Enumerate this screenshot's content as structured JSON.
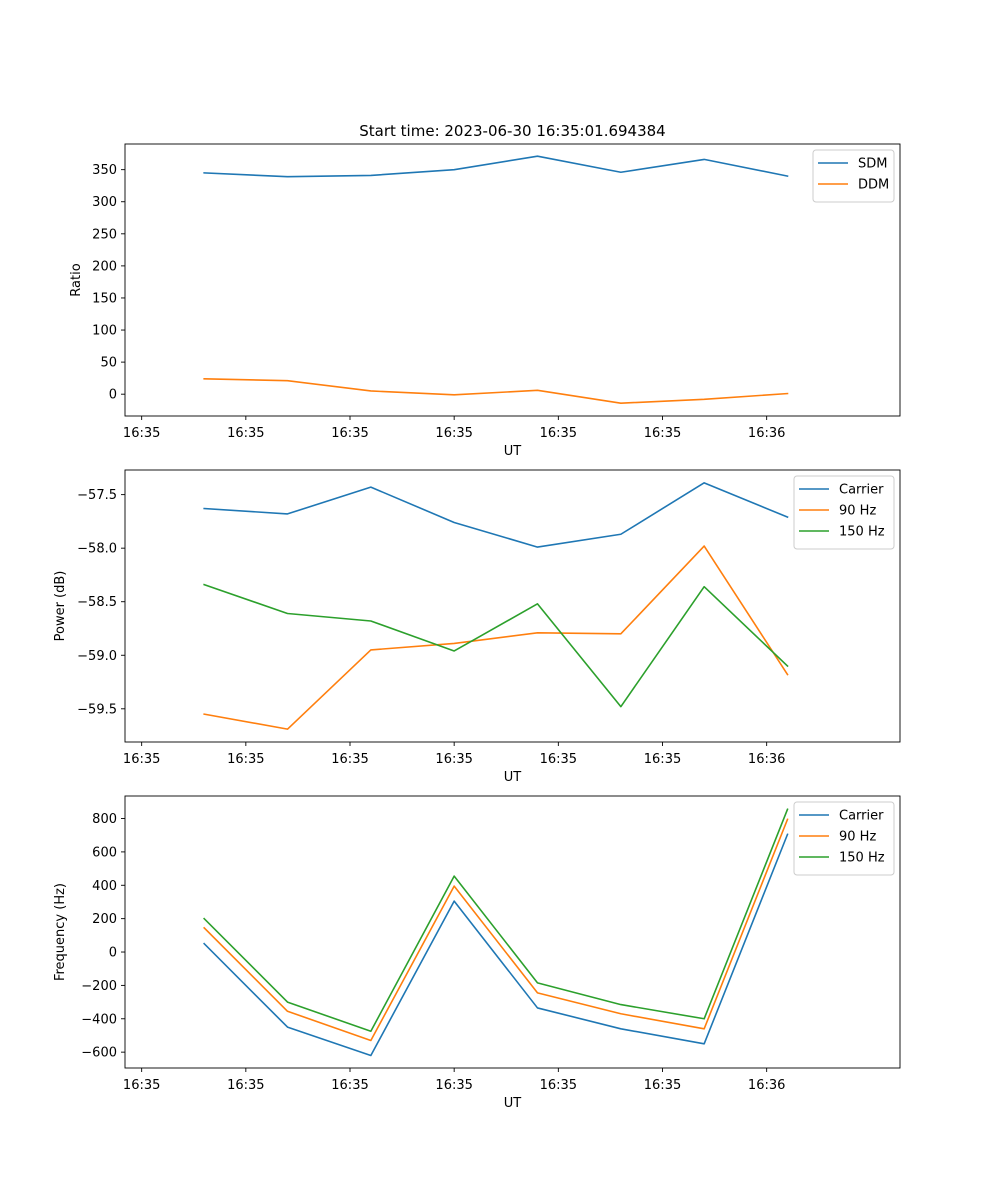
{
  "figure_title": "Start time: 2023-06-30 16:35:01.694384",
  "colors": {
    "blue": "#1f77b4",
    "orange": "#ff7f0e",
    "green": "#2ca02c",
    "axis": "#000000"
  },
  "chart_data": [
    {
      "type": "line",
      "title": "Start time: 2023-06-30 16:35:01.694384",
      "xlabel": "UT",
      "ylabel": "Ratio",
      "x_tick_labels": [
        "16:35",
        "16:35",
        "16:35",
        "16:35",
        "16:35",
        "16:35",
        "16:36"
      ],
      "xlim": [
        -0.2,
        9.1
      ],
      "x": [
        0.75,
        1.75,
        2.75,
        3.75,
        4.75,
        5.75,
        6.75,
        7.75
      ],
      "ylim": [
        -34,
        390
      ],
      "yticks": [
        0,
        50,
        100,
        150,
        200,
        250,
        300,
        350
      ],
      "legend_position": "top-right",
      "series": [
        {
          "name": "SDM",
          "color": "#1f77b4",
          "values": [
            345,
            339,
            341,
            350,
            371,
            346,
            366,
            340
          ]
        },
        {
          "name": "DDM",
          "color": "#ff7f0e",
          "values": [
            24,
            21,
            5,
            -1,
            6,
            -14,
            -8,
            1
          ]
        }
      ]
    },
    {
      "type": "line",
      "xlabel": "UT",
      "ylabel": "Power (dB)",
      "x_tick_labels": [
        "16:35",
        "16:35",
        "16:35",
        "16:35",
        "16:35",
        "16:35",
        "16:36"
      ],
      "xlim": [
        -0.2,
        9.1
      ],
      "x": [
        0.75,
        1.75,
        2.75,
        3.75,
        4.75,
        5.75,
        6.75,
        7.75
      ],
      "ylim": [
        -59.81,
        -57.27
      ],
      "yticks": [
        -59.5,
        -59.0,
        -58.5,
        -58.0,
        -57.5
      ],
      "y_tick_labels": [
        "−59.5",
        "−59.0",
        "−58.5",
        "−58.0",
        "−57.5"
      ],
      "legend_position": "top-right",
      "series": [
        {
          "name": "Carrier",
          "color": "#1f77b4",
          "values": [
            -57.63,
            -57.68,
            -57.43,
            -57.76,
            -57.99,
            -57.87,
            -57.39,
            -57.71
          ]
        },
        {
          "name": "90 Hz",
          "color": "#ff7f0e",
          "values": [
            -59.55,
            -59.69,
            -58.95,
            -58.89,
            -58.79,
            -58.8,
            -57.98,
            -59.18
          ]
        },
        {
          "name": "150 Hz",
          "color": "#2ca02c",
          "values": [
            -58.34,
            -58.61,
            -58.68,
            -58.96,
            -58.52,
            -59.48,
            -58.36,
            -59.1
          ]
        }
      ]
    },
    {
      "type": "line",
      "xlabel": "UT",
      "ylabel": "Frequency (Hz)",
      "x_tick_labels": [
        "16:35",
        "16:35",
        "16:35",
        "16:35",
        "16:35",
        "16:35",
        "16:36"
      ],
      "xlim": [
        -0.2,
        9.1
      ],
      "x": [
        0.75,
        1.75,
        2.75,
        3.75,
        4.75,
        5.75,
        6.75,
        7.75
      ],
      "ylim": [
        -695,
        935
      ],
      "yticks": [
        -600,
        -400,
        -200,
        0,
        200,
        400,
        600,
        800
      ],
      "y_tick_labels": [
        "−600",
        "−400",
        "−200",
        "0",
        "200",
        "400",
        "600",
        "800"
      ],
      "legend_position": "top-right",
      "series": [
        {
          "name": "Carrier",
          "color": "#1f77b4",
          "values": [
            50,
            -450,
            -620,
            305,
            -335,
            -460,
            -550,
            705
          ]
        },
        {
          "name": "90 Hz",
          "color": "#ff7f0e",
          "values": [
            145,
            -355,
            -530,
            395,
            -245,
            -370,
            -460,
            795
          ]
        },
        {
          "name": "150 Hz",
          "color": "#2ca02c",
          "values": [
            200,
            -300,
            -475,
            455,
            -185,
            -315,
            -400,
            855
          ]
        }
      ]
    }
  ]
}
